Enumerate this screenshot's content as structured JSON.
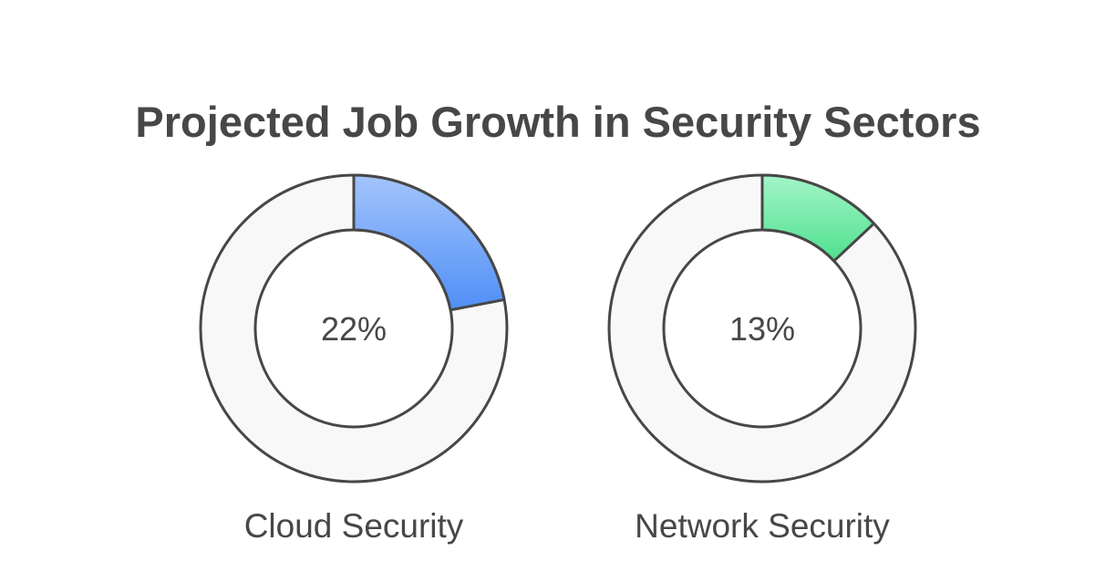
{
  "chart_data": {
    "type": "pie",
    "title": "Projected Job Growth in Security Sectors",
    "charts": [
      {
        "name": "Cloud Security",
        "value": 22,
        "value_label": "22%",
        "color": "#4f8ff7",
        "color_light": "#a3c4fb"
      },
      {
        "name": "Network Security",
        "value": 13,
        "value_label": "13%",
        "color": "#4fe08e",
        "color_light": "#a3f5c8"
      }
    ]
  },
  "colors": {
    "track": "#f8f8f8",
    "stroke": "#474747",
    "text": "#474747"
  }
}
